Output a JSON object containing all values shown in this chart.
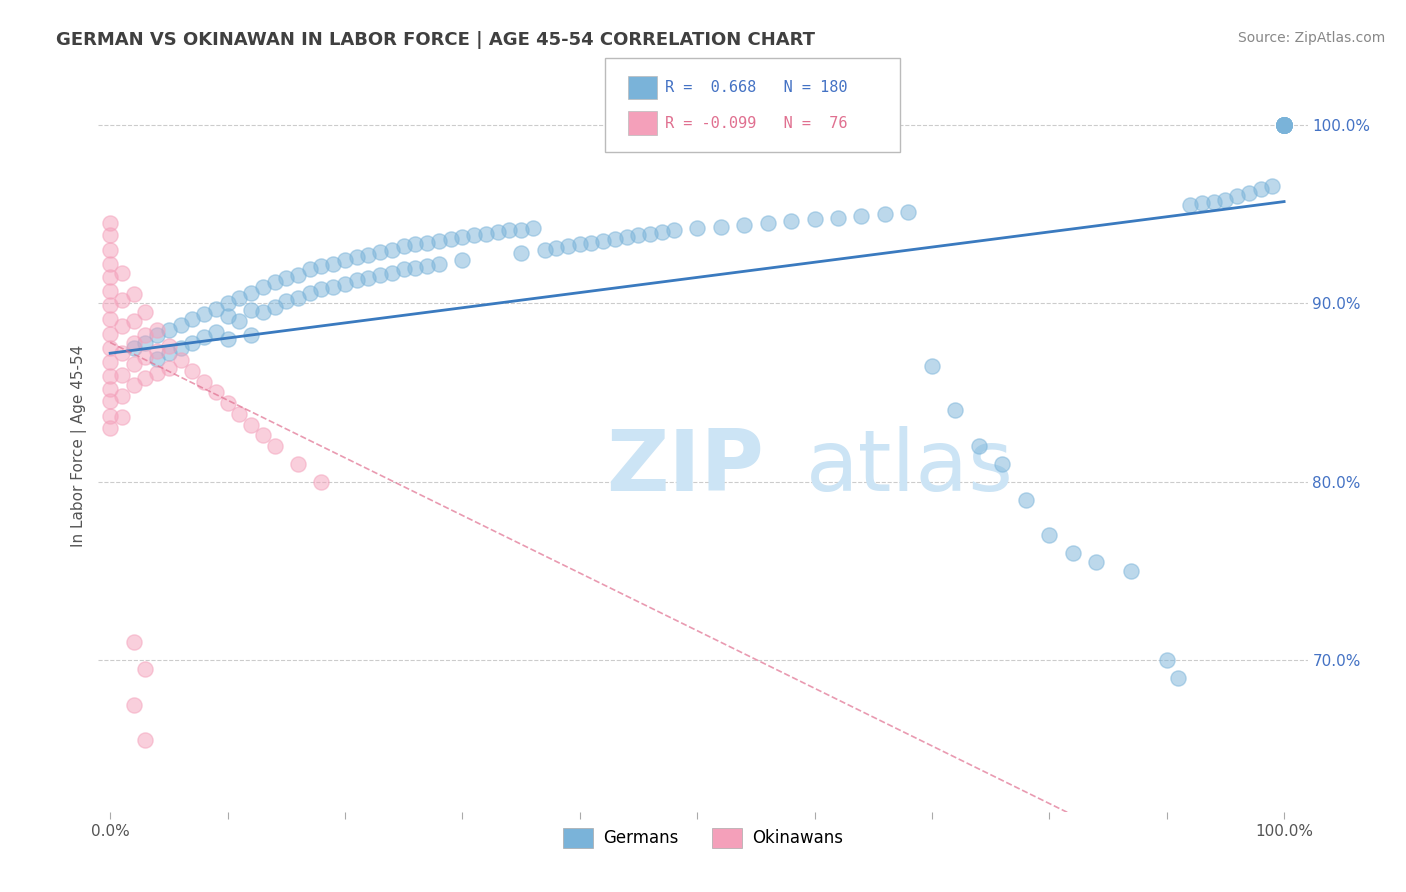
{
  "title": "GERMAN VS OKINAWAN IN LABOR FORCE | AGE 45-54 CORRELATION CHART",
  "source_text": "Source: ZipAtlas.com",
  "ylabel": "In Labor Force | Age 45-54",
  "xlim": [
    -0.01,
    1.02
  ],
  "ylim": [
    0.615,
    1.025
  ],
  "x_ticks": [
    0.0,
    0.1,
    0.2,
    0.3,
    0.4,
    0.5,
    0.6,
    0.7,
    0.8,
    0.9,
    1.0
  ],
  "x_tick_labels": [
    "0.0%",
    "",
    "",
    "",
    "",
    "",
    "",
    "",
    "",
    "",
    "100.0%"
  ],
  "y_ticks_right": [
    0.7,
    0.8,
    0.9,
    1.0
  ],
  "y_tick_labels_right": [
    "70.0%",
    "80.0%",
    "90.0%",
    "100.0%"
  ],
  "blue_color": "#7ab3d9",
  "blue_line_color": "#3a7abf",
  "pink_color": "#f4a0ba",
  "pink_line_color": "#e07090",
  "title_color": "#404040",
  "watermark_color": "#cce4f5",
  "german_trendline": [
    0.0,
    0.872,
    1.0,
    0.957
  ],
  "okinawan_trendline": [
    0.0,
    0.878,
    1.0,
    0.555
  ],
  "german_scatter_x": [
    0.02,
    0.03,
    0.04,
    0.04,
    0.05,
    0.05,
    0.06,
    0.06,
    0.07,
    0.07,
    0.08,
    0.08,
    0.09,
    0.09,
    0.1,
    0.1,
    0.1,
    0.11,
    0.11,
    0.12,
    0.12,
    0.12,
    0.13,
    0.13,
    0.14,
    0.14,
    0.15,
    0.15,
    0.16,
    0.16,
    0.17,
    0.17,
    0.18,
    0.18,
    0.19,
    0.19,
    0.2,
    0.2,
    0.21,
    0.21,
    0.22,
    0.22,
    0.23,
    0.23,
    0.24,
    0.24,
    0.25,
    0.25,
    0.26,
    0.26,
    0.27,
    0.27,
    0.28,
    0.28,
    0.29,
    0.3,
    0.3,
    0.31,
    0.32,
    0.33,
    0.34,
    0.35,
    0.35,
    0.36,
    0.37,
    0.38,
    0.39,
    0.4,
    0.41,
    0.42,
    0.43,
    0.44,
    0.45,
    0.46,
    0.47,
    0.48,
    0.5,
    0.52,
    0.54,
    0.56,
    0.58,
    0.6,
    0.62,
    0.64,
    0.66,
    0.68,
    0.7,
    0.72,
    0.74,
    0.76,
    0.78,
    0.8,
    0.82,
    0.84,
    0.87,
    0.9,
    0.91,
    0.92,
    0.93,
    0.94,
    0.95,
    0.96,
    0.97,
    0.98,
    0.99,
    1.0,
    1.0,
    1.0,
    1.0,
    1.0,
    1.0,
    1.0,
    1.0,
    1.0,
    1.0,
    1.0,
    1.0,
    1.0,
    1.0,
    1.0
  ],
  "german_scatter_y": [
    0.875,
    0.878,
    0.882,
    0.869,
    0.885,
    0.872,
    0.888,
    0.875,
    0.891,
    0.878,
    0.894,
    0.881,
    0.897,
    0.884,
    0.9,
    0.893,
    0.88,
    0.903,
    0.89,
    0.906,
    0.896,
    0.882,
    0.909,
    0.895,
    0.912,
    0.898,
    0.914,
    0.901,
    0.916,
    0.903,
    0.919,
    0.906,
    0.921,
    0.908,
    0.922,
    0.909,
    0.924,
    0.911,
    0.926,
    0.913,
    0.927,
    0.914,
    0.929,
    0.916,
    0.93,
    0.917,
    0.932,
    0.919,
    0.933,
    0.92,
    0.934,
    0.921,
    0.935,
    0.922,
    0.936,
    0.937,
    0.924,
    0.938,
    0.939,
    0.94,
    0.941,
    0.941,
    0.928,
    0.942,
    0.93,
    0.931,
    0.932,
    0.933,
    0.934,
    0.935,
    0.936,
    0.937,
    0.938,
    0.939,
    0.94,
    0.941,
    0.942,
    0.943,
    0.944,
    0.945,
    0.946,
    0.947,
    0.948,
    0.949,
    0.95,
    0.951,
    0.865,
    0.84,
    0.82,
    0.81,
    0.79,
    0.77,
    0.76,
    0.755,
    0.75,
    0.7,
    0.69,
    0.955,
    0.956,
    0.957,
    0.958,
    0.96,
    0.962,
    0.964,
    0.966,
    1.0,
    1.0,
    1.0,
    1.0,
    1.0,
    1.0,
    1.0,
    1.0,
    1.0,
    1.0,
    1.0,
    1.0,
    1.0,
    1.0,
    1.0
  ],
  "okinawan_scatter_x": [
    0.0,
    0.0,
    0.0,
    0.0,
    0.0,
    0.0,
    0.0,
    0.0,
    0.0,
    0.0,
    0.0,
    0.0,
    0.0,
    0.0,
    0.0,
    0.0,
    0.01,
    0.01,
    0.01,
    0.01,
    0.01,
    0.01,
    0.01,
    0.02,
    0.02,
    0.02,
    0.02,
    0.02,
    0.03,
    0.03,
    0.03,
    0.03,
    0.04,
    0.04,
    0.04,
    0.05,
    0.05,
    0.06,
    0.07,
    0.08,
    0.09,
    0.1,
    0.11,
    0.12,
    0.13,
    0.14,
    0.16,
    0.18,
    0.02,
    0.03,
    0.02,
    0.03
  ],
  "okinawan_scatter_y": [
    0.945,
    0.938,
    0.93,
    0.922,
    0.915,
    0.907,
    0.899,
    0.891,
    0.883,
    0.875,
    0.867,
    0.859,
    0.852,
    0.845,
    0.837,
    0.83,
    0.917,
    0.902,
    0.887,
    0.872,
    0.86,
    0.848,
    0.836,
    0.905,
    0.89,
    0.878,
    0.866,
    0.854,
    0.895,
    0.882,
    0.87,
    0.858,
    0.885,
    0.873,
    0.861,
    0.876,
    0.864,
    0.868,
    0.862,
    0.856,
    0.85,
    0.844,
    0.838,
    0.832,
    0.826,
    0.82,
    0.81,
    0.8,
    0.71,
    0.695,
    0.675,
    0.655
  ]
}
